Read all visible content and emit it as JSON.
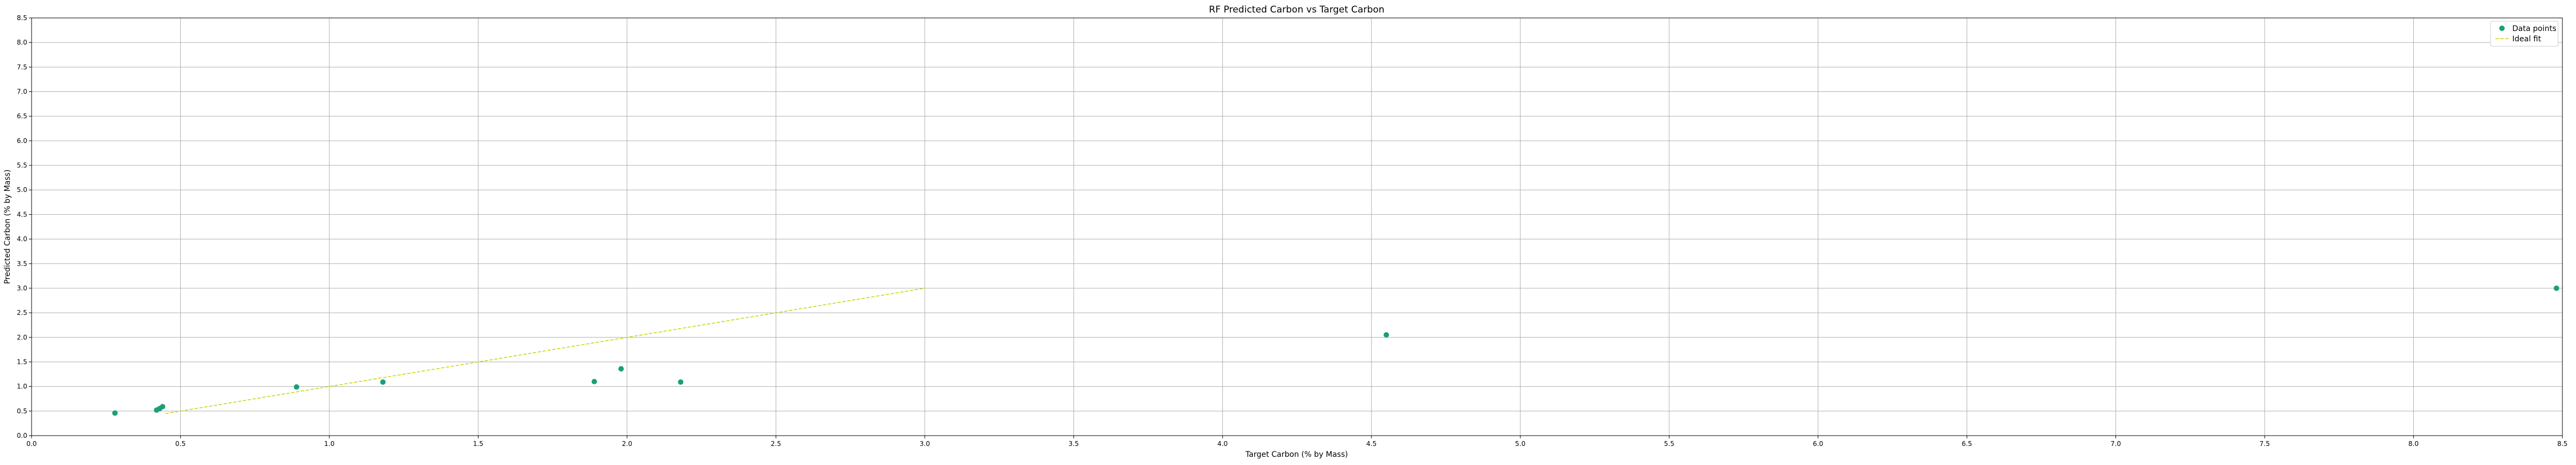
{
  "chart_data": {
    "type": "scatter",
    "title": "RF Predicted Carbon vs Target Carbon",
    "xlabel": "Target Carbon (% by Mass)",
    "ylabel": "Predicted Carbon (% by Mass)",
    "xlim": [
      0.0,
      8.5
    ],
    "ylim": [
      0.0,
      8.5
    ],
    "xticks": [
      "0.0",
      "0.5",
      "1.0",
      "1.5",
      "2.0",
      "2.5",
      "3.0",
      "3.5",
      "4.0",
      "4.5",
      "5.0",
      "5.5",
      "6.0",
      "6.5",
      "7.0",
      "7.5",
      "8.0",
      "8.5"
    ],
    "yticks": [
      "0.0",
      "0.5",
      "1.0",
      "1.5",
      "2.0",
      "2.5",
      "3.0",
      "3.5",
      "4.0",
      "4.5",
      "5.0",
      "5.5",
      "6.0",
      "6.5",
      "7.0",
      "7.5",
      "8.0",
      "8.5"
    ],
    "grid": true,
    "legend_position": "top-right",
    "series": [
      {
        "name": "Data points",
        "kind": "scatter",
        "color": "#1a9f76",
        "points": [
          {
            "x": 0.28,
            "y": 0.46
          },
          {
            "x": 0.42,
            "y": 0.52
          },
          {
            "x": 0.43,
            "y": 0.55
          },
          {
            "x": 0.44,
            "y": 0.59
          },
          {
            "x": 0.89,
            "y": 0.99
          },
          {
            "x": 1.18,
            "y": 1.09
          },
          {
            "x": 1.89,
            "y": 1.1
          },
          {
            "x": 1.98,
            "y": 1.36
          },
          {
            "x": 2.18,
            "y": 1.09
          },
          {
            "x": 4.55,
            "y": 2.05
          },
          {
            "x": 8.48,
            "y": 3.0
          }
        ]
      },
      {
        "name": "Ideal fit",
        "kind": "line",
        "style": "dashed",
        "color": "#c8d400",
        "points": [
          {
            "x": 0.45,
            "y": 0.45
          },
          {
            "x": 3.0,
            "y": 3.0
          }
        ]
      }
    ]
  }
}
